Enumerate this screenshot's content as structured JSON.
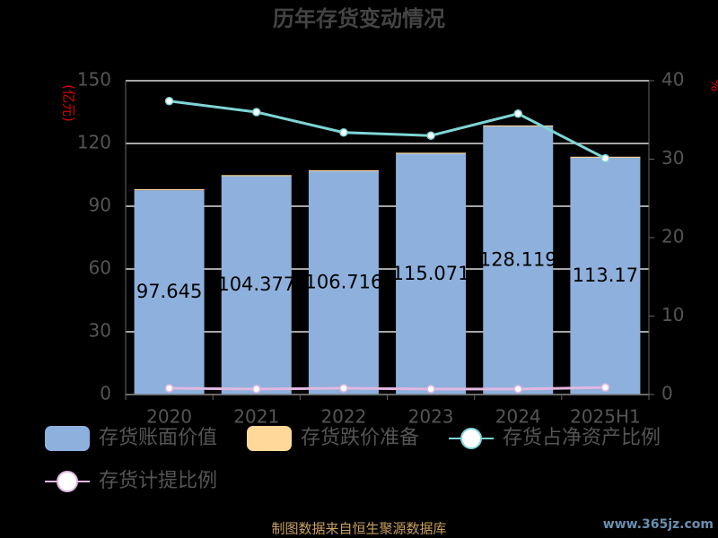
{
  "chart_data": {
    "type": "bar",
    "title": "历年存货变动情况",
    "y_label": "(亿元)",
    "y2_label": "%",
    "categories": [
      "2020",
      "2021",
      "2022",
      "2023",
      "2024",
      "2025H1"
    ],
    "series": [
      {
        "name": "存货账面价值",
        "color": "#8eb0dc",
        "values": [
          97.645,
          104.377,
          106.716,
          115.071,
          128.119,
          113.17
        ]
      },
      {
        "name": "存货跌价准备",
        "color": "#ffd89a",
        "values": [
          0.5,
          0.5,
          0.5,
          0.5,
          0.5,
          0.5
        ]
      },
      {
        "name": "存货占净资产比例",
        "color": "#7fd5d5",
        "axis": "y2",
        "values": [
          37.4,
          36.0,
          33.4,
          33.0,
          35.8,
          30.1
        ]
      },
      {
        "name": "存货计提比例",
        "color": "#e0b8e0",
        "axis": "y2",
        "values": [
          0.8,
          0.7,
          0.8,
          0.7,
          0.7,
          0.9
        ]
      }
    ],
    "ylim": [
      0,
      150
    ],
    "yticks": [
      0,
      30,
      60,
      90,
      120,
      150
    ],
    "y2lim": [
      0,
      40
    ],
    "y2ticks": [
      0,
      10,
      20,
      30,
      40
    ],
    "grid": true,
    "source": "制图数据来自恒生聚源数据库",
    "watermark": "www.365jz.com"
  }
}
